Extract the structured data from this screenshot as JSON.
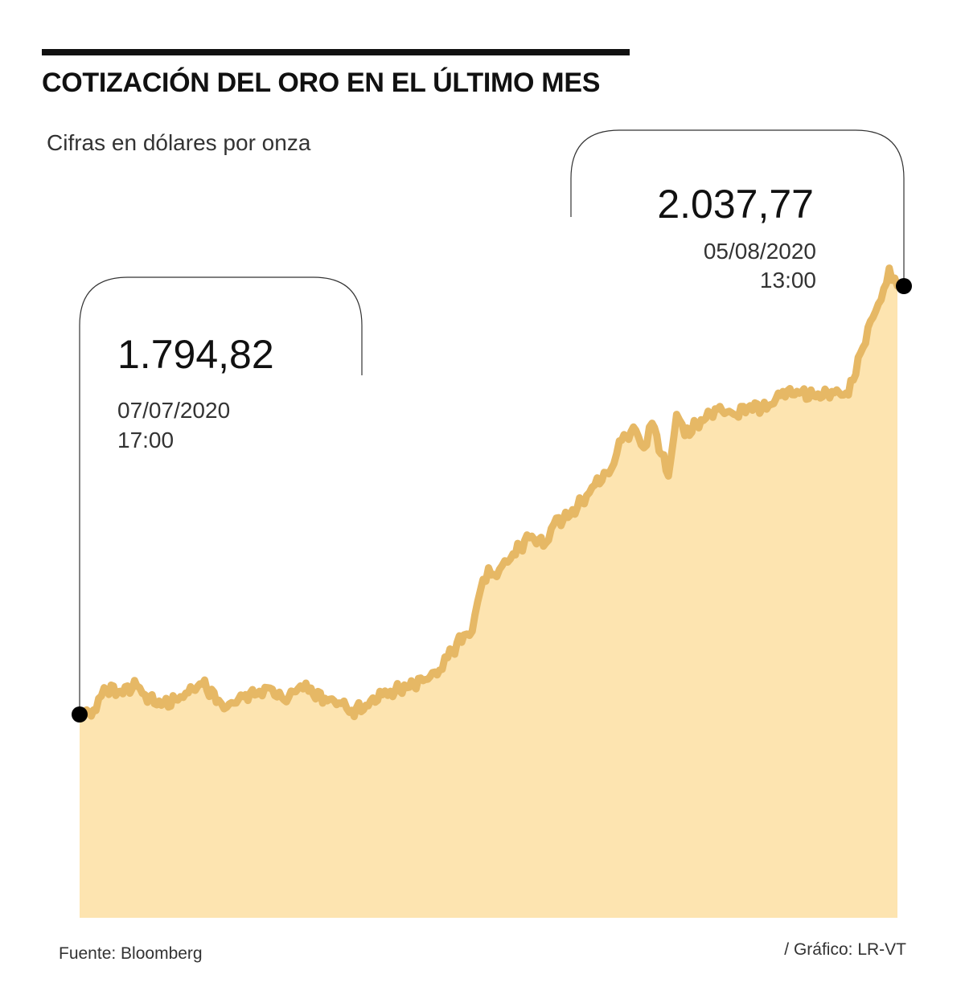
{
  "header": {
    "title": "COTIZACIÓN DEL ORO EN EL ÚLTIMO MES",
    "subtitle": "Cifras en dólares por onza"
  },
  "footer": {
    "source": "Fuente: Bloomberg",
    "credit": "/ Gráfico: LR-VT"
  },
  "colors": {
    "area_fill": "#fde4b0",
    "line": "#e6b865",
    "marker": "#000000",
    "rule": "#111111"
  },
  "annotations": [
    {
      "value": "1.794,82",
      "date": "07/07/2020",
      "time": "17:00",
      "point": "start"
    },
    {
      "value": "2.037,77",
      "date": "05/08/2020",
      "time": "13:00",
      "point": "end"
    }
  ],
  "chart_data": {
    "type": "area",
    "title": "COTIZACIÓN DEL ORO EN EL ÚLTIMO MES",
    "subtitle": "Cifras en dólares por onza",
    "xlabel": "",
    "ylabel": "",
    "x_range": [
      "07/07/2020 17:00",
      "05/08/2020 13:00"
    ],
    "ylim": [
      1700,
      2060
    ],
    "grid": false,
    "legend": "none",
    "x": [
      0,
      0.02,
      0.03,
      0.05,
      0.07,
      0.08,
      0.1,
      0.12,
      0.13,
      0.15,
      0.17,
      0.18,
      0.2,
      0.22,
      0.23,
      0.25,
      0.27,
      0.28,
      0.3,
      0.32,
      0.33,
      0.35,
      0.37,
      0.38,
      0.4,
      0.42,
      0.44,
      0.45,
      0.47,
      0.48,
      0.49,
      0.5,
      0.51,
      0.52,
      0.53,
      0.55,
      0.57,
      0.58,
      0.6,
      0.62,
      0.63,
      0.65,
      0.66,
      0.68,
      0.69,
      0.7,
      0.72,
      0.73,
      0.74,
      0.76,
      0.78,
      0.8,
      0.82,
      0.84,
      0.86,
      0.88,
      0.9,
      0.92,
      0.94,
      0.955,
      0.97,
      0.98,
      0.99,
      1.0
    ],
    "values": [
      1794.82,
      1797,
      1810,
      1808,
      1811,
      1806,
      1800,
      1803,
      1807,
      1812,
      1803,
      1799,
      1805,
      1808,
      1810,
      1803,
      1811,
      1808,
      1804,
      1801,
      1796,
      1800,
      1806,
      1808,
      1810,
      1814,
      1820,
      1827,
      1840,
      1842,
      1865,
      1878,
      1873,
      1882,
      1886,
      1895,
      1892,
      1903,
      1908,
      1919,
      1925,
      1934,
      1950,
      1956,
      1946,
      1960,
      1930,
      1965,
      1953,
      1962,
      1968,
      1965,
      1970,
      1968,
      1978,
      1977,
      1975,
      1978,
      1976,
      2000,
      2020,
      2030,
      2048,
      2037.77
    ],
    "series": [
      {
        "name": "",
        "values": [
          1794.82,
          1797,
          1810,
          1808,
          1811,
          1806,
          1800,
          1803,
          1807,
          1812,
          1803,
          1799,
          1805,
          1808,
          1810,
          1803,
          1811,
          1808,
          1804,
          1801,
          1796,
          1800,
          1806,
          1808,
          1810,
          1814,
          1820,
          1827,
          1840,
          1842,
          1865,
          1878,
          1873,
          1882,
          1886,
          1895,
          1892,
          1903,
          1908,
          1919,
          1925,
          1934,
          1950,
          1956,
          1946,
          1960,
          1930,
          1965,
          1953,
          1962,
          1968,
          1965,
          1970,
          1968,
          1978,
          1977,
          1975,
          1978,
          1976,
          2000,
          2020,
          2030,
          2048,
          2037.77
        ]
      }
    ],
    "annotations": [
      {
        "label": "1.794,82",
        "date": "07/07/2020",
        "time": "17:00",
        "value": 1794.82
      },
      {
        "label": "2.037,77",
        "date": "05/08/2020",
        "time": "13:00",
        "value": 2037.77
      }
    ]
  }
}
